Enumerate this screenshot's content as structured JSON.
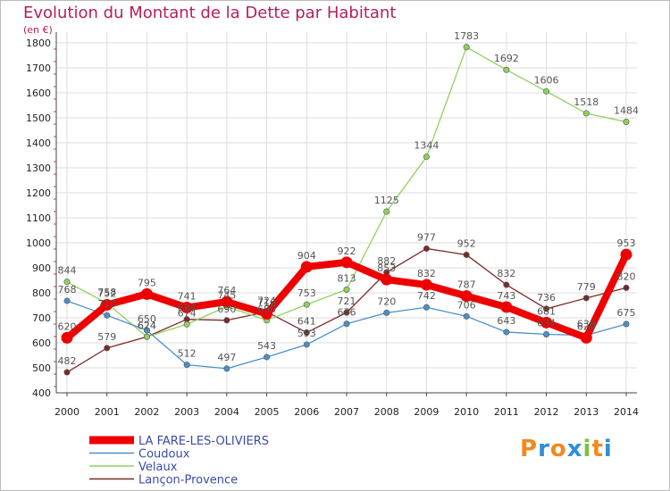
{
  "title": "Evolution du Montant de la Dette par Habitant",
  "unit_label": "(en €)",
  "logo": {
    "letters": [
      "P",
      "r",
      "o",
      "x",
      "i",
      "t",
      "i"
    ],
    "colors": [
      "#f08a1e",
      "#2e8fd6",
      "#f08a1e",
      "#2e8fd6",
      "#7dc242",
      "#f08a1e",
      "#2e8fd6"
    ]
  },
  "chart_data": {
    "type": "line",
    "title": "Evolution du Montant de la Dette par Habitant",
    "ylabel": "(en €)",
    "xlabel": "",
    "ylim": [
      400,
      1800
    ],
    "yticks": [
      400,
      500,
      600,
      700,
      800,
      900,
      1000,
      1100,
      1200,
      1300,
      1400,
      1500,
      1600,
      1700,
      1800
    ],
    "categories": [
      "2000",
      "2001",
      "2002",
      "2003",
      "2004",
      "2005",
      "2006",
      "2007",
      "2008",
      "2009",
      "2010",
      "2011",
      "2012",
      "2013",
      "2014"
    ],
    "grid": true,
    "legend_position": "bottom-left",
    "series": [
      {
        "name": "Lançon-Provence",
        "color": "#7a2a2a",
        "values": [
          482,
          579,
          624,
          694,
          690,
          724,
          641,
          721,
          882,
          977,
          952,
          832,
          736,
          779,
          820
        ]
      },
      {
        "name": "Velaux",
        "color": "#8fd15e",
        "values": [
          844,
          758,
          624,
          674,
          745,
          690,
          753,
          813,
          1125,
          1344,
          1783,
          1692,
          1606,
          1518,
          1484
        ]
      },
      {
        "name": "Coudoux",
        "color": "#4a90c8",
        "values": [
          768,
          710,
          650,
          512,
          497,
          543,
          593,
          676,
          720,
          742,
          706,
          643,
          634,
          630,
          675
        ]
      },
      {
        "name": "LA FARE-LES-OLIVIERS",
        "color": "#ee0000",
        "values": [
          620,
          752,
          795,
          741,
          764,
          716,
          904,
          922,
          853,
          832,
          787,
          743,
          681,
          620,
          953
        ]
      }
    ],
    "labels": [
      {
        "series": "Lançon-Provence",
        "labels": [
          "482",
          "579",
          "624",
          "694",
          "690",
          "724",
          "641",
          "721",
          "882",
          "977",
          "952",
          "832",
          "736",
          "779",
          "820"
        ]
      },
      {
        "series": "Velaux",
        "labels": [
          "844",
          "758",
          "624",
          "674",
          "745",
          "690",
          "753",
          "813",
          "1125",
          "1344",
          "1783",
          "1692",
          "1606",
          "1518",
          "1484"
        ]
      },
      {
        "series": "Coudoux",
        "labels": [
          "768",
          "710",
          "650",
          "512",
          "497",
          "543",
          "593",
          "676",
          "720",
          "742",
          "706",
          "643",
          "634",
          "630",
          "675"
        ]
      },
      {
        "series": "LA FARE-LES-OLIVIERS",
        "labels": [
          "620",
          "752",
          "795",
          "741",
          "764",
          "716",
          "904",
          "922",
          "853",
          "832",
          "787",
          "743",
          "681",
          "620",
          "953"
        ]
      }
    ]
  }
}
